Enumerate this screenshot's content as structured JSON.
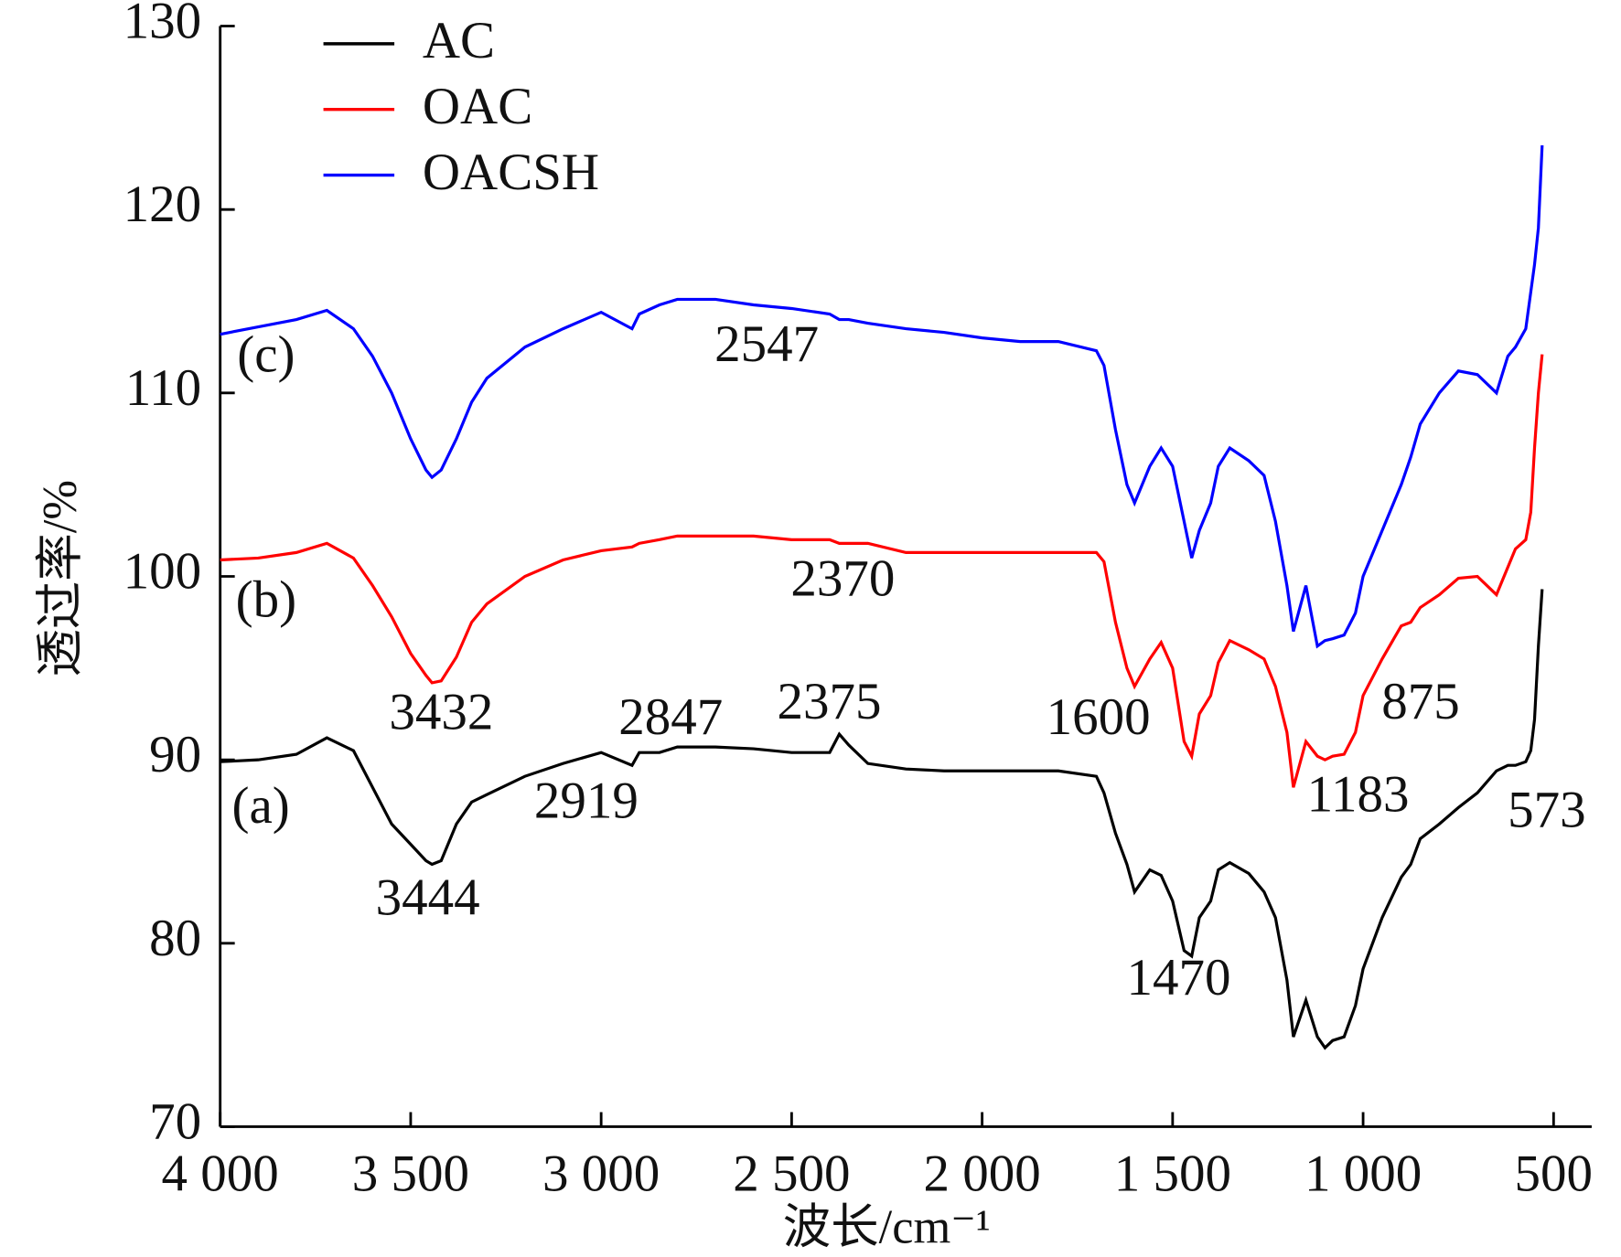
{
  "chart_data": {
    "type": "line",
    "xlabel": "波长/cm⁻¹",
    "ylabel": "透过率/%",
    "xlim": [
      4000,
      400
    ],
    "ylim": [
      70,
      130
    ],
    "xticks": [
      {
        "value": 4000,
        "label": "4 000"
      },
      {
        "value": 3500,
        "label": "3 500"
      },
      {
        "value": 3000,
        "label": "3 000"
      },
      {
        "value": 2500,
        "label": "2 500"
      },
      {
        "value": 2000,
        "label": "2 000"
      },
      {
        "value": 1500,
        "label": "1 500"
      },
      {
        "value": 1000,
        "label": "1 000"
      },
      500
    ],
    "yticks": [
      70,
      80,
      90,
      100,
      110,
      120,
      130
    ],
    "grid": false,
    "legend": "top-left",
    "x": [
      4000,
      3900,
      3800,
      3720,
      3650,
      3600,
      3550,
      3500,
      3460,
      3444,
      3420,
      3380,
      3340,
      3300,
      3200,
      3100,
      3000,
      2919,
      2900,
      2847,
      2800,
      2700,
      2600,
      2500,
      2400,
      2375,
      2350,
      2300,
      2200,
      2100,
      2000,
      1900,
      1800,
      1700,
      1680,
      1650,
      1620,
      1600,
      1560,
      1530,
      1500,
      1470,
      1450,
      1430,
      1400,
      1380,
      1350,
      1300,
      1260,
      1230,
      1200,
      1183,
      1150,
      1120,
      1100,
      1080,
      1050,
      1020,
      1000,
      950,
      900,
      875,
      850,
      800,
      750,
      700,
      650,
      620,
      600,
      573,
      560,
      550,
      540,
      530
    ],
    "series": [
      {
        "name": "AC",
        "color": "#000000",
        "values": [
          89.9,
          90.0,
          90.3,
          91.2,
          90.5,
          88.5,
          86.5,
          85.4,
          84.5,
          84.3,
          84.5,
          86.5,
          87.7,
          88.1,
          89.1,
          89.8,
          90.4,
          89.7,
          90.4,
          90.4,
          90.7,
          90.7,
          90.6,
          90.4,
          90.4,
          91.4,
          90.8,
          89.8,
          89.5,
          89.4,
          89.4,
          89.4,
          89.4,
          89.1,
          88.2,
          86.0,
          84.3,
          82.8,
          84.0,
          83.7,
          82.3,
          79.6,
          79.3,
          81.4,
          82.3,
          84.0,
          84.4,
          83.8,
          82.8,
          81.4,
          78.0,
          74.9,
          76.9,
          74.9,
          74.3,
          74.7,
          74.9,
          76.6,
          78.6,
          81.4,
          83.6,
          84.3,
          85.7,
          86.5,
          87.4,
          88.2,
          89.4,
          89.7,
          89.7,
          89.9,
          90.5,
          92.2,
          96.2,
          99.3
        ]
      },
      {
        "name": "OAC",
        "color": "#ff0000",
        "values": [
          100.9,
          101.0,
          101.3,
          101.8,
          101.0,
          99.5,
          97.8,
          95.8,
          94.6,
          94.2,
          94.3,
          95.6,
          97.5,
          98.5,
          100.0,
          100.9,
          101.4,
          101.6,
          101.8,
          102.0,
          102.2,
          102.2,
          102.2,
          102.0,
          102.0,
          101.8,
          101.8,
          101.8,
          101.3,
          101.3,
          101.3,
          101.3,
          101.3,
          101.3,
          100.8,
          97.5,
          95.0,
          94.0,
          95.5,
          96.4,
          95.0,
          91.0,
          90.2,
          92.5,
          93.5,
          95.3,
          96.5,
          96.0,
          95.5,
          94.0,
          91.5,
          88.5,
          91.0,
          90.2,
          90.0,
          90.2,
          90.3,
          91.5,
          93.5,
          95.5,
          97.3,
          97.5,
          98.3,
          99.0,
          99.9,
          100.0,
          99.0,
          100.5,
          101.5,
          102.0,
          103.5,
          107.0,
          110.0,
          112.1
        ]
      },
      {
        "name": "OACSH",
        "color": "#0000ff",
        "values": [
          113.2,
          113.6,
          114.0,
          114.5,
          113.5,
          112.0,
          110.0,
          107.5,
          105.8,
          105.4,
          105.8,
          107.5,
          109.5,
          110.8,
          112.5,
          113.5,
          114.4,
          113.5,
          114.3,
          114.8,
          115.1,
          115.1,
          114.8,
          114.6,
          114.3,
          114.0,
          114.0,
          113.8,
          113.5,
          113.3,
          113.0,
          112.8,
          112.8,
          112.3,
          111.5,
          108.0,
          105.0,
          104.0,
          106.0,
          107.0,
          106.0,
          103.0,
          101.0,
          102.5,
          104.0,
          106.0,
          107.0,
          106.3,
          105.5,
          103.0,
          99.5,
          97.0,
          99.5,
          96.2,
          96.5,
          96.6,
          96.8,
          98.0,
          100.0,
          102.5,
          105.0,
          106.5,
          108.3,
          110.0,
          111.2,
          111.0,
          110.0,
          112.0,
          112.5,
          113.5,
          115.5,
          117.0,
          119.0,
          123.5
        ]
      }
    ],
    "annotations": [
      "3444",
      "2919",
      "2847",
      "2375",
      "1470",
      "3432",
      "2370",
      "1600",
      "1183",
      "875",
      "573",
      "2547",
      "(a)",
      "(b)",
      "(c)"
    ]
  }
}
